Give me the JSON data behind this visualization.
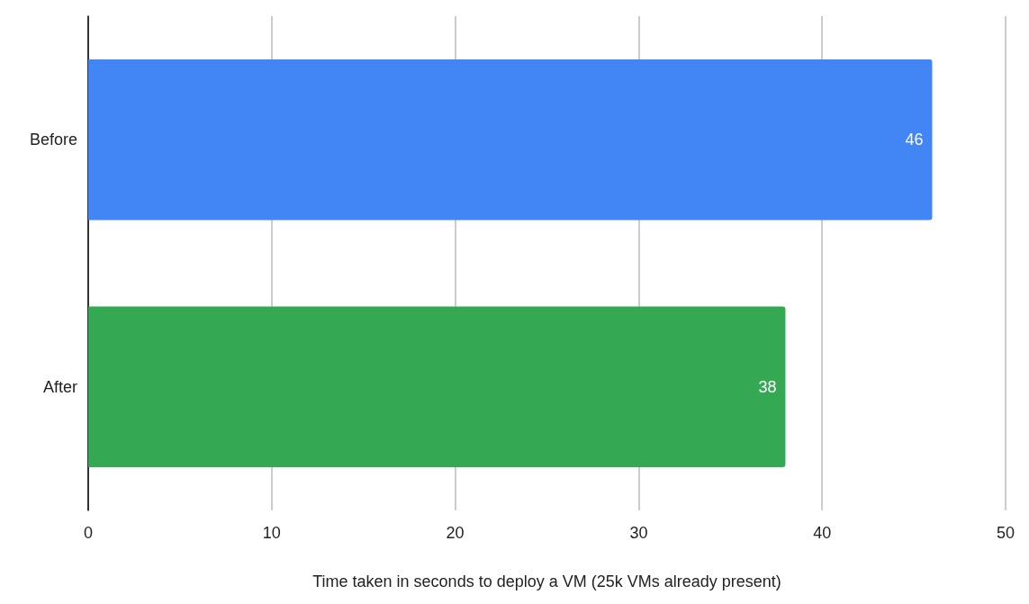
{
  "chart_data": {
    "type": "bar",
    "orientation": "horizontal",
    "xlabel": "Time taken in seconds to deploy a VM (25k VMs already present)",
    "categories": [
      "Before",
      "After"
    ],
    "values": [
      46,
      38
    ],
    "colors": [
      "#4285f4",
      "#34a853"
    ],
    "xlim": [
      0,
      50
    ],
    "xticks": [
      0,
      10,
      20,
      30,
      40,
      50
    ],
    "grid": "x",
    "data_labels": true
  }
}
